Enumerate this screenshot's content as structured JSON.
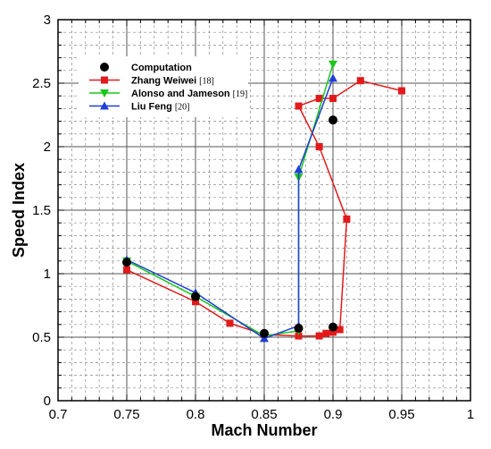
{
  "chart_data": {
    "type": "line",
    "title": "",
    "xlabel": "Mach Number",
    "ylabel": "Speed Index",
    "xlim": [
      0.7,
      1.0
    ],
    "ylim": [
      0,
      3
    ],
    "xticks": [
      "0.7",
      "0.75",
      "0.8",
      "0.85",
      "0.9",
      "0.95",
      "1"
    ],
    "yticks": [
      "0",
      "0.5",
      "1",
      "1.5",
      "2",
      "2.5",
      "3"
    ],
    "grid": true,
    "legend_position": "top-left",
    "series": [
      {
        "name": "Computation",
        "ref": "",
        "marker": "circle",
        "color": "#000000",
        "line": false,
        "points": [
          [
            0.75,
            1.09
          ],
          [
            0.8,
            0.82
          ],
          [
            0.85,
            0.53
          ],
          [
            0.875,
            0.57
          ],
          [
            0.9,
            0.58
          ],
          [
            0.9,
            2.21
          ]
        ]
      },
      {
        "name": "Zhang Weiwei",
        "ref": "[18]",
        "marker": "square",
        "color": "#e31a1c",
        "line": true,
        "points": [
          [
            0.75,
            1.03
          ],
          [
            0.8,
            0.78
          ],
          [
            0.825,
            0.61
          ],
          [
            0.85,
            0.52
          ],
          [
            0.875,
            0.51
          ],
          [
            0.89,
            0.51
          ],
          [
            0.895,
            0.53
          ],
          [
            0.9,
            0.54
          ],
          [
            0.905,
            0.56
          ],
          [
            0.91,
            1.43
          ],
          [
            0.89,
            2.0
          ],
          [
            0.875,
            2.32
          ],
          [
            0.89,
            2.38
          ],
          [
            0.9,
            2.38
          ],
          [
            0.92,
            2.52
          ],
          [
            0.95,
            2.44
          ]
        ]
      },
      {
        "name": "Alonso and Jameson",
        "ref": "[19]",
        "marker": "triangle-down",
        "color": "#19c819",
        "line": true,
        "points": [
          [
            0.75,
            1.1
          ],
          [
            0.8,
            0.82
          ],
          [
            0.85,
            0.51
          ],
          [
            0.875,
            0.55
          ],
          [
            0.875,
            1.76
          ],
          [
            0.9,
            2.65
          ]
        ]
      },
      {
        "name": "Liu Feng",
        "ref": "[20]",
        "marker": "triangle-up",
        "color": "#1f3fd6",
        "line": true,
        "points": [
          [
            0.75,
            1.11
          ],
          [
            0.8,
            0.85
          ],
          [
            0.85,
            0.49
          ],
          [
            0.875,
            0.59
          ],
          [
            0.875,
            1.82
          ],
          [
            0.9,
            2.54
          ]
        ]
      }
    ]
  }
}
